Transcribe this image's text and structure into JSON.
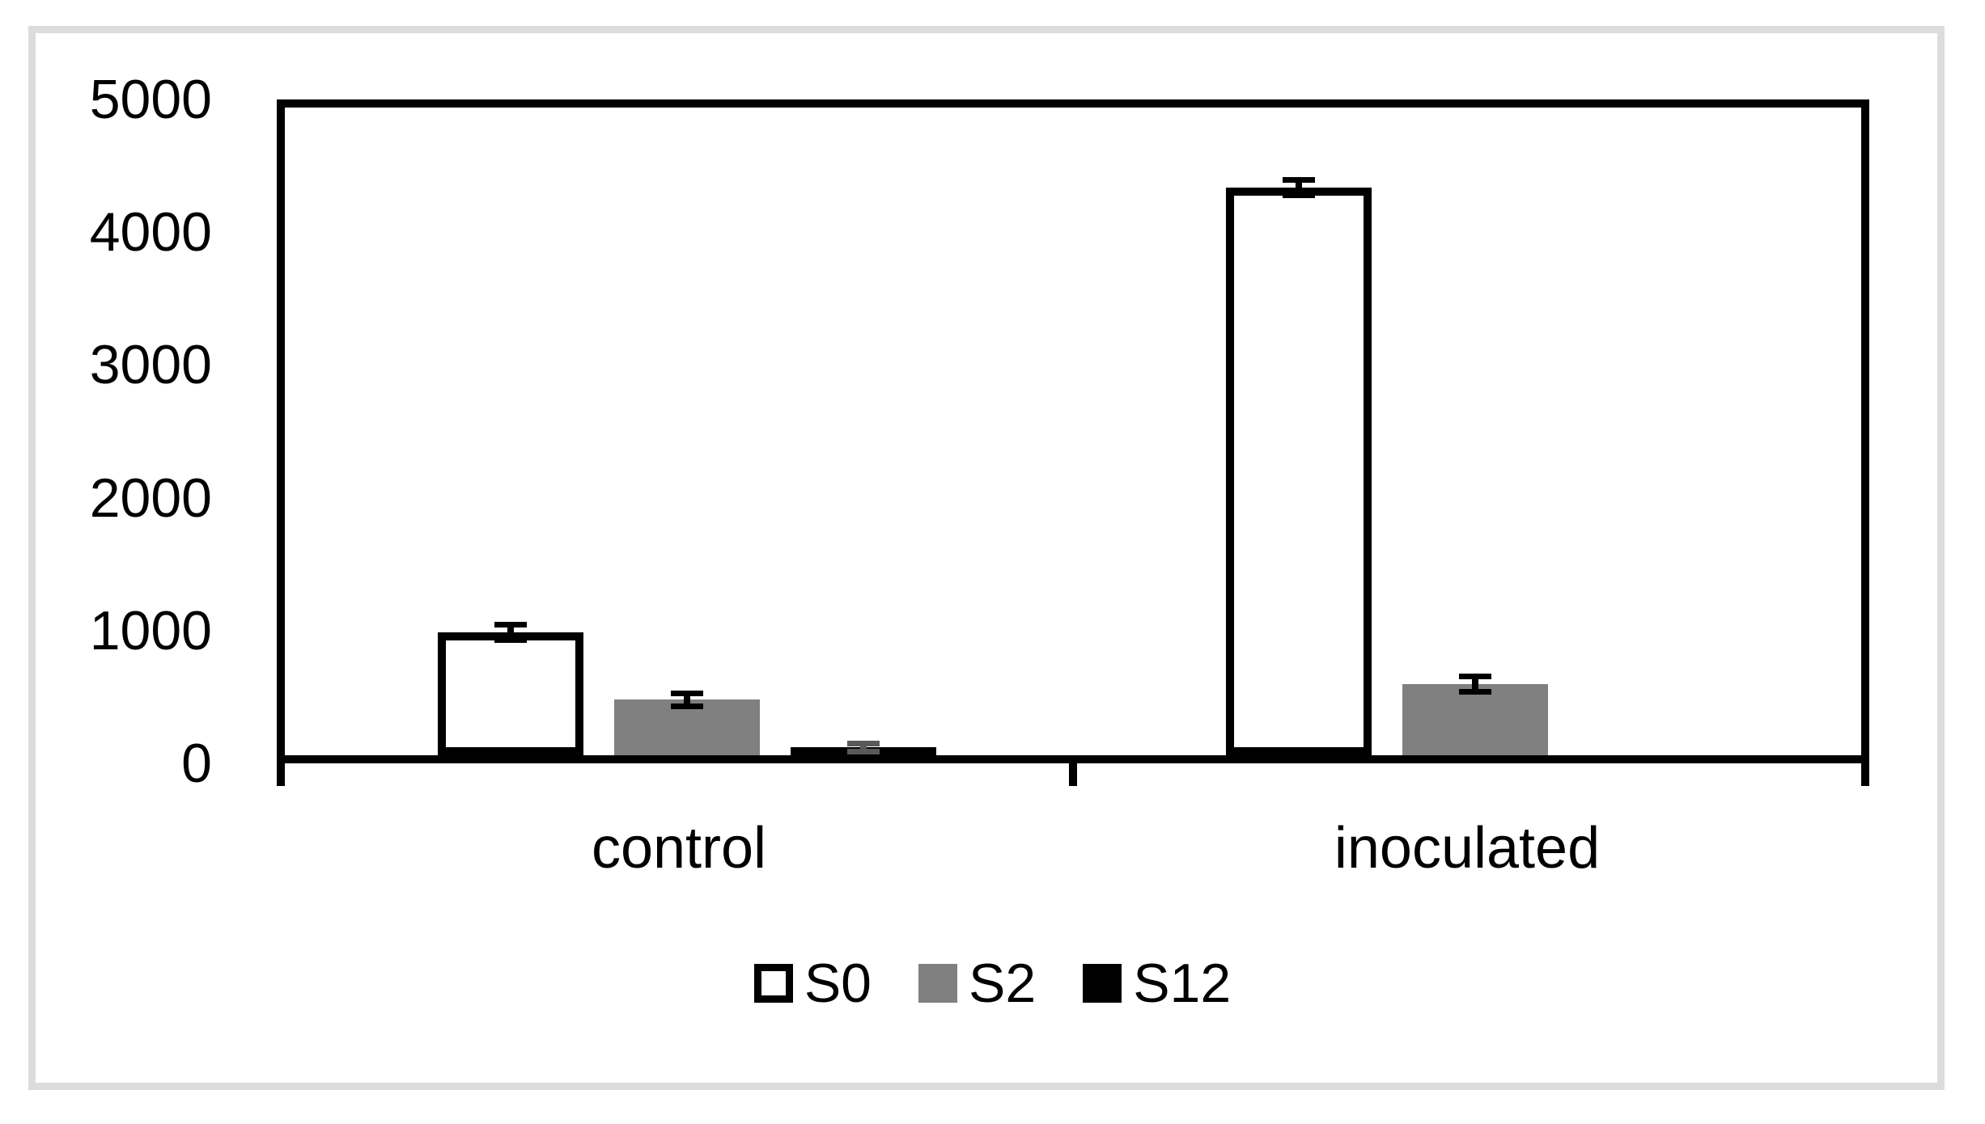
{
  "figure": {
    "background_color": "#ffffff",
    "outer_frame_color": "#dcdcdc",
    "axis_color": "#000000"
  },
  "chart_data": {
    "type": "bar",
    "title": "",
    "xlabel": "",
    "ylabel": "",
    "categories": [
      "control",
      "inoculated"
    ],
    "series": [
      {
        "name": "S0",
        "fill": "#ffffff",
        "border": "#000000",
        "values": [
          950,
          4380
        ],
        "errors": [
          60,
          60
        ],
        "error_color": "#000000"
      },
      {
        "name": "S2",
        "fill": "#808080",
        "border": null,
        "values": [
          430,
          550
        ],
        "errors": [
          50,
          60
        ],
        "error_color": "#000000"
      },
      {
        "name": "S12",
        "fill": "#000000",
        "border": null,
        "values": [
          60,
          0
        ],
        "errors": [
          30,
          0
        ],
        "error_color": "#595959"
      }
    ],
    "ylim": [
      0,
      5000
    ],
    "yticks": [
      0,
      1000,
      2000,
      3000,
      4000,
      5000
    ],
    "grid": false,
    "legend_position": "bottom",
    "legend_labels": [
      "S0",
      "S2",
      "S12"
    ]
  }
}
